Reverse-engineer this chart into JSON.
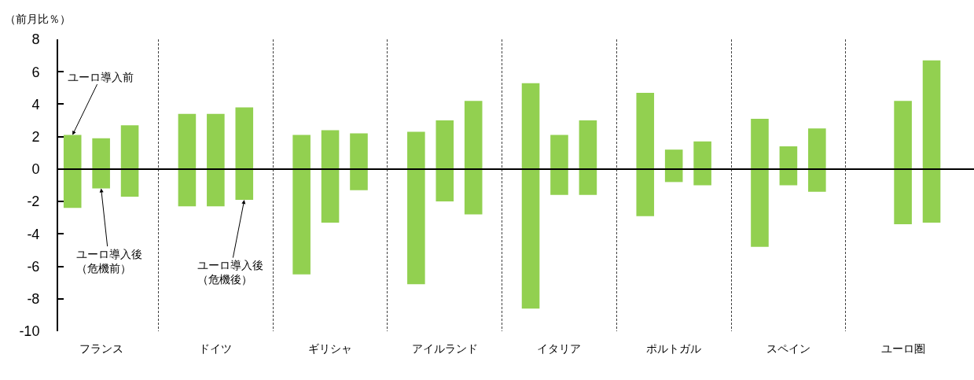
{
  "chart_data": {
    "type": "bar",
    "ylabel": "（前月比％）",
    "categories": [
      "フランス",
      "ドイツ",
      "ギリシャ",
      "アイルランド",
      "イタリア",
      "ポルトガル",
      "スペイン",
      "ユーロ圏"
    ],
    "series": [
      {
        "name": "ユーロ導入前",
        "color": "#92d050",
        "base": [
          -2.4,
          -2.3,
          -6.5,
          -7.1,
          -8.6,
          -2.9,
          -4.8,
          null
        ],
        "values": [
          4.5,
          5.7,
          8.6,
          9.4,
          13.9,
          7.6,
          7.9,
          null
        ]
      },
      {
        "name": "ユーロ導入後（危機前）",
        "color": "#92d050",
        "base": [
          -1.2,
          -2.3,
          -3.3,
          -2.0,
          -1.6,
          -0.8,
          -1.0,
          -3.4
        ],
        "values": [
          3.1,
          5.7,
          5.7,
          5.0,
          3.7,
          2.0,
          2.4,
          7.6
        ]
      },
      {
        "name": "ユーロ導入後（危機後）",
        "color": "#92d050",
        "base": [
          -1.7,
          -1.9,
          -1.3,
          -2.8,
          -1.6,
          -1.0,
          -1.4,
          -3.3
        ],
        "values": [
          4.4,
          5.7,
          3.5,
          7.0,
          4.6,
          2.7,
          3.9,
          10.0
        ]
      }
    ],
    "ylim": [
      -10,
      8
    ],
    "yticks": [
      -10,
      -8,
      -6,
      -4,
      -2,
      0,
      2,
      4,
      6,
      8
    ],
    "grid": "x",
    "ref_lines": [
      {
        "axis": "y",
        "value": 0,
        "color": "#000000"
      }
    ]
  }
}
